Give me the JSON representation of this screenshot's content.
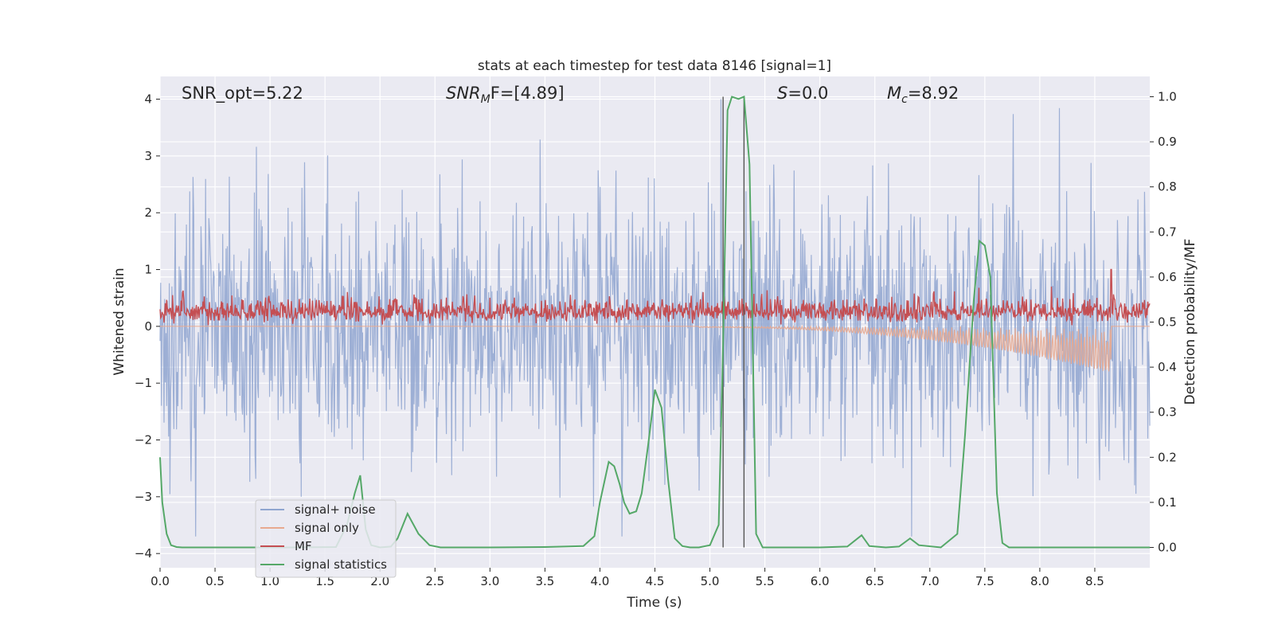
{
  "chart_data": {
    "type": "line",
    "title": "stats at each timestep for test data 8146 [signal=1]",
    "xlabel": "Time (s)",
    "ylabel": "Whitened strain",
    "ylabel_right": "Detection probability/MF",
    "xlim": [
      0.0,
      9.0
    ],
    "ylim": [
      -4.25,
      4.4
    ],
    "ylim_right": [
      -0.045,
      1.045
    ],
    "grid": true,
    "legend_position": "lower-left",
    "x_ticks": [
      "0.0",
      "0.5",
      "1.0",
      "1.5",
      "2.0",
      "2.5",
      "3.0",
      "3.5",
      "4.0",
      "4.5",
      "5.0",
      "5.5",
      "6.0",
      "6.5",
      "7.0",
      "7.5",
      "8.0",
      "8.5"
    ],
    "y_ticks": [
      "4",
      "3",
      "2",
      "1",
      "0",
      "−1",
      "−2",
      "−3",
      "−4"
    ],
    "y_ticks_right": [
      "1.0",
      "0.9",
      "0.8",
      "0.7",
      "0.6",
      "0.5",
      "0.4",
      "0.3",
      "0.2",
      "0.1",
      "0.0"
    ],
    "annotations": {
      "snr_opt": "SNR_opt=5.22",
      "snr_mf_sym": "SNR",
      "snr_mf_sub": "M",
      "snr_mf_rest": "F=[4.89]",
      "s_sym": "S",
      "s_rest": "=0.0",
      "mc_sym": "M",
      "mc_sub": "c",
      "mc_rest": "=8.92"
    },
    "vertical_lines_x": [
      5.12,
      5.31
    ],
    "series": [
      {
        "name": "signal+ noise",
        "color": "#8fa5d0",
        "axis": "left",
        "summary": {
          "max_abs_approx": 4.0,
          "typical_range": [
            -2.5,
            2.5
          ]
        }
      },
      {
        "name": "signal only",
        "color": "#e8a98f",
        "axis": "left",
        "summary": {
          "x_end": 8.65,
          "y_min_at_end": -0.8
        }
      },
      {
        "name": "MF",
        "color": "#c44e52",
        "axis": "left",
        "summary": {
          "typical_range": [
            0.0,
            0.7
          ],
          "spike": {
            "x": 8.65,
            "y": 1.0
          }
        }
      },
      {
        "name": "signal statistics",
        "color": "#55a868",
        "axis": "right",
        "x": [
          0.0,
          0.02,
          0.06,
          0.1,
          0.15,
          0.2,
          0.4,
          0.8,
          1.2,
          1.6,
          1.7,
          1.77,
          1.82,
          1.87,
          1.92,
          2.0,
          2.1,
          2.16,
          2.25,
          2.35,
          2.45,
          2.55,
          3.0,
          3.5,
          3.85,
          3.95,
          4.0,
          4.08,
          4.13,
          4.18,
          4.22,
          4.27,
          4.33,
          4.38,
          4.44,
          4.5,
          4.56,
          4.62,
          4.68,
          4.75,
          4.82,
          4.9,
          5.0,
          5.08,
          5.12,
          5.16,
          5.2,
          5.26,
          5.31,
          5.36,
          5.42,
          5.48,
          5.55,
          6.0,
          6.25,
          6.38,
          6.45,
          6.6,
          6.72,
          6.82,
          6.9,
          7.1,
          7.25,
          7.32,
          7.4,
          7.45,
          7.5,
          7.55,
          7.61,
          7.66,
          7.72,
          7.8,
          8.5,
          9.0
        ],
        "values": [
          0.2,
          0.1,
          0.03,
          0.005,
          0.001,
          0.0,
          0.0,
          0.0,
          0.0,
          0.001,
          0.05,
          0.12,
          0.16,
          0.04,
          0.005,
          0.0,
          0.002,
          0.02,
          0.075,
          0.03,
          0.005,
          0.0,
          0.0,
          0.001,
          0.003,
          0.025,
          0.1,
          0.19,
          0.18,
          0.14,
          0.1,
          0.075,
          0.08,
          0.12,
          0.23,
          0.35,
          0.31,
          0.15,
          0.02,
          0.003,
          0.0,
          0.0,
          0.005,
          0.05,
          0.45,
          0.97,
          1.0,
          0.995,
          1.0,
          0.85,
          0.03,
          0.0,
          0.0,
          0.0,
          0.002,
          0.027,
          0.003,
          0.0,
          0.002,
          0.02,
          0.005,
          0.0,
          0.03,
          0.25,
          0.55,
          0.68,
          0.67,
          0.6,
          0.12,
          0.01,
          0.0,
          0.0,
          0.0,
          0.0
        ]
      }
    ]
  }
}
